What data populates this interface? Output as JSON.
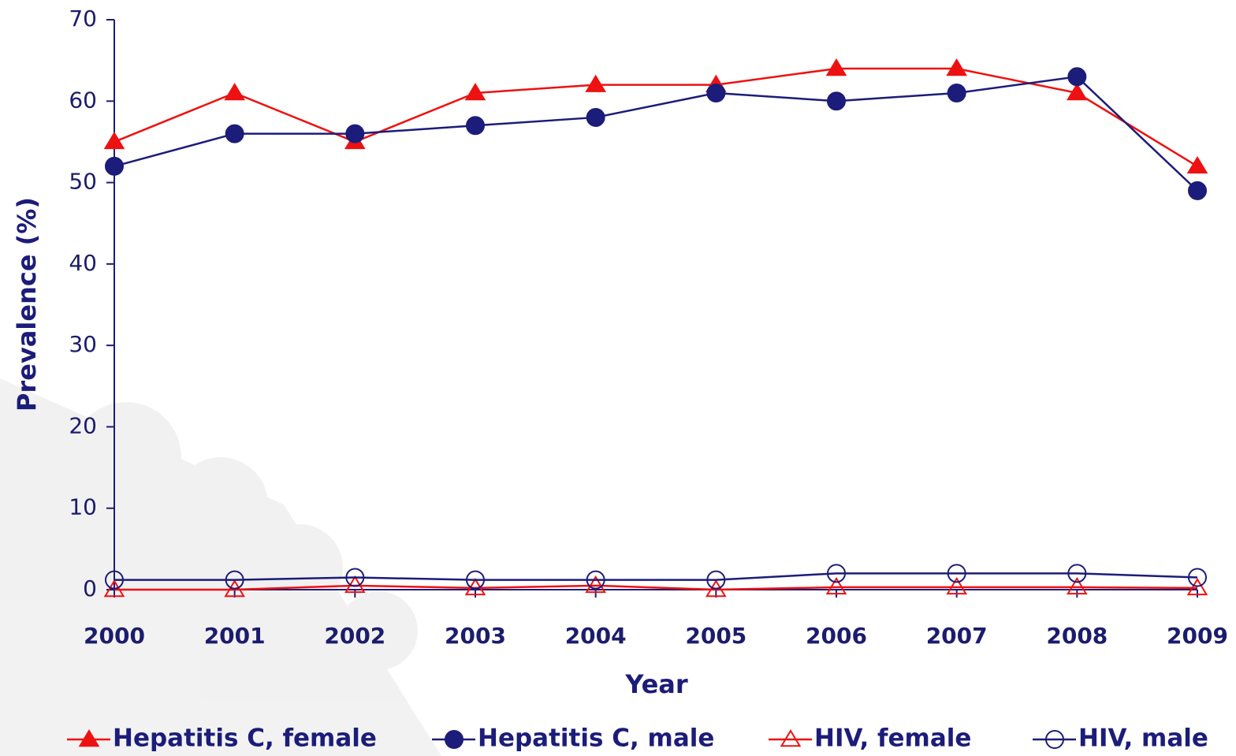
{
  "chart_data": {
    "type": "line",
    "x_label": "Year",
    "y_label": "Prevalence (%)",
    "x": [
      2000,
      2001,
      2002,
      2003,
      2004,
      2005,
      2006,
      2007,
      2008,
      2009
    ],
    "xlim": [
      2000,
      2009
    ],
    "xticks": [
      2000,
      2001,
      2002,
      2003,
      2004,
      2005,
      2006,
      2007,
      2008,
      2009
    ],
    "ylim": [
      0,
      70
    ],
    "yticks": [
      0,
      10,
      20,
      30,
      40,
      50,
      60,
      70
    ],
    "series": [
      {
        "name": "Hepatitis C, female",
        "color": "#ee1111",
        "marker": "triangle",
        "filled": true,
        "values": [
          55,
          61,
          55,
          61,
          62,
          62,
          64,
          64,
          61,
          52
        ]
      },
      {
        "name": "Hepatitis C, male",
        "color": "#1c1c7a",
        "marker": "circle",
        "filled": true,
        "values": [
          52,
          56,
          56,
          57,
          58,
          61,
          60,
          61,
          63,
          49
        ]
      },
      {
        "name": "HIV, female",
        "color": "#ee1111",
        "marker": "triangle",
        "filled": false,
        "values": [
          0,
          0,
          0.5,
          0.2,
          0.5,
          0,
          0.3,
          0.3,
          0.3,
          0.2
        ]
      },
      {
        "name": "HIV, male",
        "color": "#1c1c7a",
        "marker": "circle",
        "filled": false,
        "values": [
          1.2,
          1.2,
          1.5,
          1.2,
          1.2,
          1.2,
          2,
          2,
          2,
          1.5
        ]
      }
    ]
  }
}
